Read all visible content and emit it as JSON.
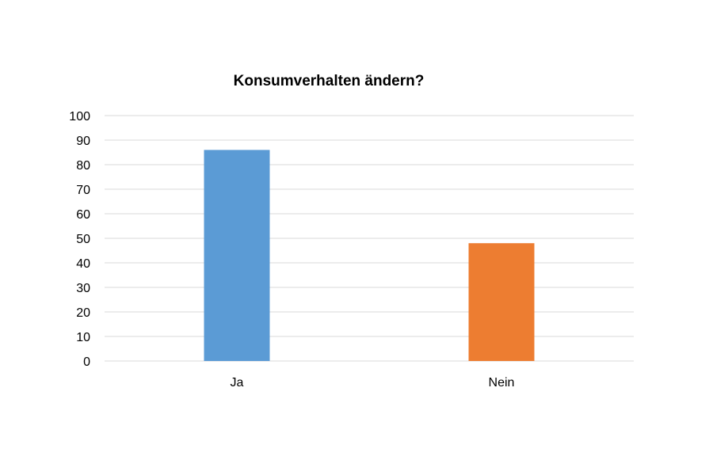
{
  "chart_data": {
    "type": "bar",
    "title": "Konsumverhalten ändern?",
    "xlabel": "",
    "ylabel": "",
    "categories": [
      "Ja",
      "Nein"
    ],
    "values": [
      86,
      48
    ],
    "bar_colors": [
      "#5b9bd5",
      "#ed7d31"
    ],
    "gridline_color": "#d9d9d9",
    "ylim": [
      0,
      100
    ],
    "y_ticks": [
      0,
      10,
      20,
      30,
      40,
      50,
      60,
      70,
      80,
      90,
      100
    ],
    "grid": true,
    "legend": "none"
  }
}
